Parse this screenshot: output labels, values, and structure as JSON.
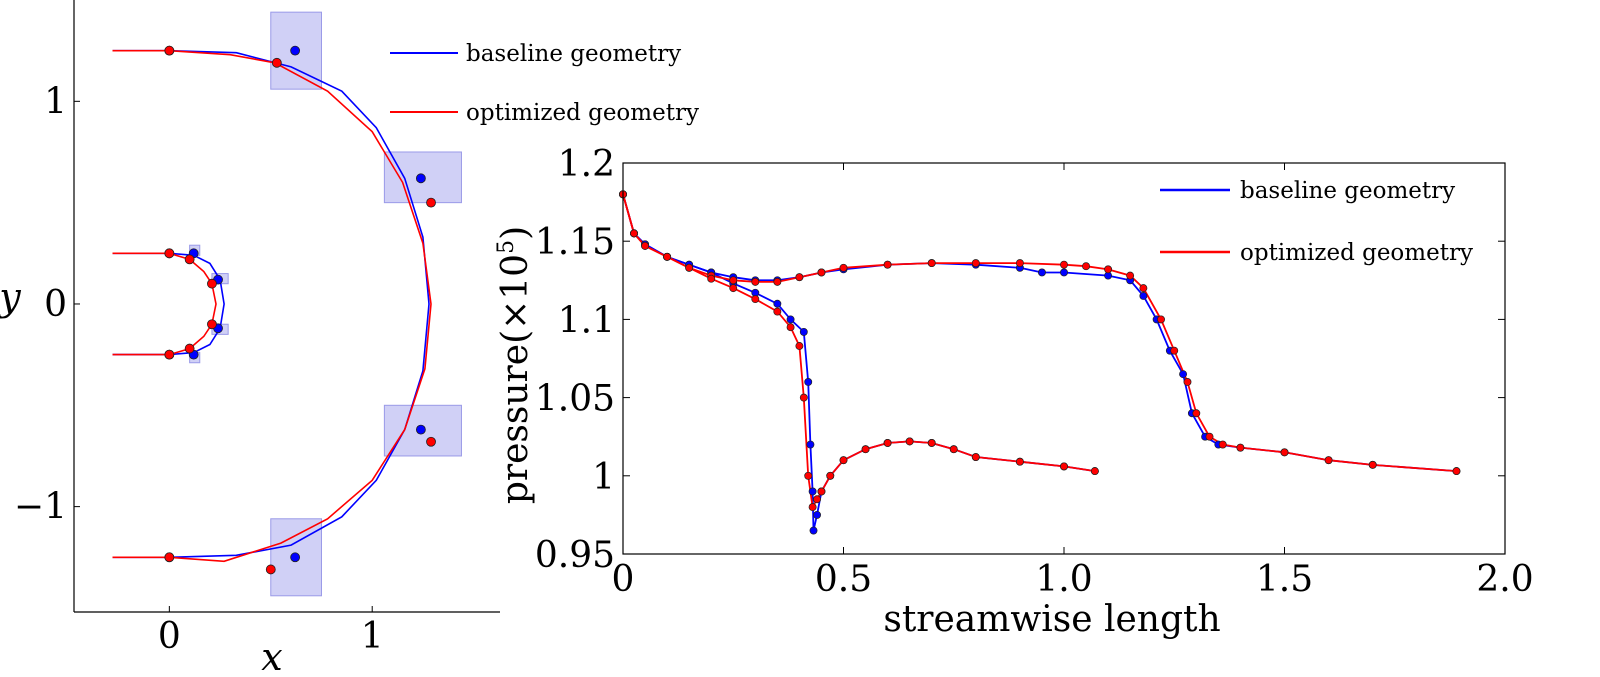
{
  "chart_data": [
    {
      "type": "line",
      "xlabel": "x",
      "ylabel": "y",
      "xlim": [
        -0.47,
        1.63
      ],
      "ylim": [
        -1.52,
        1.5
      ],
      "xticks": [
        0,
        1
      ],
      "yticks": [
        -1,
        0,
        1
      ],
      "xtick_labels": [
        "0",
        "1"
      ],
      "ytick_labels": [
        "−1",
        "0",
        "1"
      ],
      "grid": false,
      "legend_placement": "top-right",
      "colors": {
        "baseline": "#0000ff",
        "optimized": "#ff0000",
        "box_fill": "#c8c8f5"
      },
      "series": [
        {
          "name": "baseline geometry",
          "curves": [
            [
              [
                -0.28,
                1.25
              ],
              [
                0,
                1.25
              ],
              [
                0.33,
                1.24
              ],
              [
                0.6,
                1.17
              ],
              [
                0.85,
                1.05
              ],
              [
                1.02,
                0.87
              ],
              [
                1.16,
                0.62
              ],
              [
                1.25,
                0.33
              ],
              [
                1.28,
                0
              ],
              [
                1.25,
                -0.33
              ],
              [
                1.16,
                -0.62
              ],
              [
                1.02,
                -0.87
              ],
              [
                0.85,
                -1.05
              ],
              [
                0.6,
                -1.19
              ],
              [
                0.33,
                -1.24
              ],
              [
                0,
                -1.25
              ],
              [
                -0.28,
                -1.25
              ]
            ],
            [
              [
                -0.28,
                0.25
              ],
              [
                0,
                0.25
              ],
              [
                0.12,
                0.24
              ],
              [
                0.2,
                0.2
              ],
              [
                0.25,
                0.12
              ],
              [
                0.27,
                0
              ],
              [
                0.25,
                -0.12
              ],
              [
                0.2,
                -0.2
              ],
              [
                0.12,
                -0.24
              ],
              [
                0,
                -0.25
              ],
              [
                -0.28,
                -0.25
              ]
            ]
          ],
          "markers": [
            [
              0,
              1.25
            ],
            [
              0.62,
              1.25
            ],
            [
              1.24,
              0.62
            ],
            [
              1.24,
              -0.62
            ],
            [
              0.62,
              -1.25
            ],
            [
              0,
              -1.25
            ],
            [
              0,
              0.25
            ],
            [
              0.12,
              0.25
            ],
            [
              0.24,
              0.12
            ],
            [
              0.24,
              -0.12
            ],
            [
              0.12,
              -0.25
            ],
            [
              0,
              -0.25
            ]
          ]
        },
        {
          "name": "optimized geometry",
          "curves": [
            [
              [
                -0.28,
                1.25
              ],
              [
                0,
                1.25
              ],
              [
                0.3,
                1.23
              ],
              [
                0.52,
                1.19
              ],
              [
                0.78,
                1.05
              ],
              [
                1.0,
                0.85
              ],
              [
                1.15,
                0.6
              ],
              [
                1.25,
                0.3
              ],
              [
                1.29,
                0
              ],
              [
                1.26,
                -0.32
              ],
              [
                1.16,
                -0.62
              ],
              [
                1.0,
                -0.87
              ],
              [
                0.78,
                -1.06
              ],
              [
                0.55,
                -1.18
              ],
              [
                0.27,
                -1.27
              ],
              [
                0,
                -1.25
              ],
              [
                -0.28,
                -1.25
              ]
            ],
            [
              [
                -0.28,
                0.25
              ],
              [
                0,
                0.25
              ],
              [
                0.1,
                0.22
              ],
              [
                0.17,
                0.16
              ],
              [
                0.21,
                0.1
              ],
              [
                0.23,
                0
              ],
              [
                0.21,
                -0.1
              ],
              [
                0.17,
                -0.16
              ],
              [
                0.1,
                -0.22
              ],
              [
                0,
                -0.25
              ],
              [
                -0.28,
                -0.25
              ]
            ]
          ],
          "markers": [
            [
              0,
              1.25
            ],
            [
              0.53,
              1.19
            ],
            [
              1.29,
              0.5
            ],
            [
              1.29,
              -0.68
            ],
            [
              0.5,
              -1.31
            ],
            [
              0,
              -1.25
            ],
            [
              0,
              0.25
            ],
            [
              0.1,
              0.22
            ],
            [
              0.21,
              0.1
            ],
            [
              0.21,
              -0.1
            ],
            [
              0.1,
              -0.22
            ],
            [
              0,
              -0.25
            ]
          ]
        }
      ],
      "design_boxes": [
        {
          "x": [
            0.5,
            0.75
          ],
          "y": [
            1.06,
            1.44
          ]
        },
        {
          "x": [
            1.06,
            1.44
          ],
          "y": [
            0.5,
            0.75
          ]
        },
        {
          "x": [
            1.06,
            1.44
          ],
          "y": [
            -0.75,
            -0.5
          ]
        },
        {
          "x": [
            0.5,
            0.75
          ],
          "y": [
            -1.44,
            -1.06
          ]
        },
        {
          "x": [
            0.1,
            0.15
          ],
          "y": [
            0.24,
            0.29
          ]
        },
        {
          "x": [
            0.21,
            0.29
          ],
          "y": [
            0.1,
            0.15
          ]
        },
        {
          "x": [
            0.21,
            0.29
          ],
          "y": [
            -0.15,
            -0.1
          ]
        },
        {
          "x": [
            0.1,
            0.15
          ],
          "y": [
            -0.29,
            -0.24
          ]
        }
      ]
    },
    {
      "type": "line",
      "xlabel": "streamwise length",
      "ylabel": "pressure(×10",
      "ylabel_sup": "5",
      "ylabel_close": ")",
      "xlim": [
        0,
        2.0
      ],
      "ylim": [
        0.95,
        1.2
      ],
      "xticks": [
        0,
        0.5,
        1.0,
        1.5,
        2.0
      ],
      "yticks": [
        0.95,
        1,
        1.05,
        1.1,
        1.15,
        1.2
      ],
      "xtick_labels": [
        "0",
        "0.5",
        "1.0",
        "1.5",
        "2.0"
      ],
      "ytick_labels": [
        "0.95",
        "1",
        "1.05",
        "1.1",
        "1.15",
        "1.2"
      ],
      "grid": false,
      "legend_placement": "top-right",
      "colors": {
        "baseline": "#0000ff",
        "optimized": "#ff0000"
      },
      "series": [
        {
          "name": "baseline geometry",
          "branches": [
            [
              [
                0,
                1.18
              ],
              [
                0.025,
                1.155
              ],
              [
                0.05,
                1.148
              ],
              [
                0.1,
                1.14
              ],
              [
                0.15,
                1.135
              ],
              [
                0.2,
                1.13
              ],
              [
                0.25,
                1.127
              ],
              [
                0.3,
                1.125
              ],
              [
                0.35,
                1.125
              ],
              [
                0.4,
                1.127
              ],
              [
                0.45,
                1.13
              ],
              [
                0.5,
                1.132
              ],
              [
                0.6,
                1.135
              ],
              [
                0.7,
                1.136
              ],
              [
                0.8,
                1.135
              ],
              [
                0.9,
                1.133
              ],
              [
                0.95,
                1.13
              ],
              [
                1.0,
                1.13
              ],
              [
                1.1,
                1.128
              ],
              [
                1.15,
                1.125
              ],
              [
                1.18,
                1.115
              ],
              [
                1.21,
                1.1
              ],
              [
                1.24,
                1.08
              ],
              [
                1.27,
                1.065
              ],
              [
                1.29,
                1.04
              ],
              [
                1.32,
                1.025
              ],
              [
                1.35,
                1.02
              ],
              [
                1.4,
                1.018
              ],
              [
                1.5,
                1.015
              ],
              [
                1.6,
                1.01
              ],
              [
                1.7,
                1.007
              ],
              [
                1.89,
                1.003
              ]
            ],
            [
              [
                0,
                1.18
              ],
              [
                0.025,
                1.155
              ],
              [
                0.05,
                1.148
              ],
              [
                0.1,
                1.14
              ],
              [
                0.15,
                1.135
              ],
              [
                0.2,
                1.13
              ],
              [
                0.25,
                1.123
              ],
              [
                0.3,
                1.117
              ],
              [
                0.35,
                1.11
              ],
              [
                0.38,
                1.1
              ],
              [
                0.41,
                1.092
              ],
              [
                0.42,
                1.06
              ],
              [
                0.425,
                1.02
              ],
              [
                0.43,
                0.99
              ],
              [
                0.432,
                0.965
              ],
              [
                0.44,
                0.975
              ],
              [
                0.45,
                0.99
              ],
              [
                0.47,
                1.0
              ],
              [
                0.5,
                1.01
              ],
              [
                0.55,
                1.017
              ],
              [
                0.6,
                1.021
              ],
              [
                0.65,
                1.022
              ],
              [
                0.7,
                1.021
              ],
              [
                0.75,
                1.017
              ],
              [
                0.8,
                1.012
              ],
              [
                0.9,
                1.009
              ],
              [
                1.0,
                1.006
              ],
              [
                1.07,
                1.003
              ]
            ]
          ]
        },
        {
          "name": "optimized geometry",
          "branches": [
            [
              [
                0,
                1.18
              ],
              [
                0.025,
                1.155
              ],
              [
                0.05,
                1.147
              ],
              [
                0.1,
                1.14
              ],
              [
                0.15,
                1.133
              ],
              [
                0.2,
                1.128
              ],
              [
                0.25,
                1.125
              ],
              [
                0.3,
                1.124
              ],
              [
                0.35,
                1.124
              ],
              [
                0.4,
                1.127
              ],
              [
                0.45,
                1.13
              ],
              [
                0.5,
                1.133
              ],
              [
                0.6,
                1.135
              ],
              [
                0.7,
                1.136
              ],
              [
                0.8,
                1.136
              ],
              [
                0.9,
                1.136
              ],
              [
                1.0,
                1.135
              ],
              [
                1.05,
                1.134
              ],
              [
                1.1,
                1.132
              ],
              [
                1.15,
                1.128
              ],
              [
                1.18,
                1.12
              ],
              [
                1.22,
                1.1
              ],
              [
                1.25,
                1.08
              ],
              [
                1.28,
                1.06
              ],
              [
                1.3,
                1.04
              ],
              [
                1.33,
                1.025
              ],
              [
                1.36,
                1.02
              ],
              [
                1.4,
                1.018
              ],
              [
                1.5,
                1.015
              ],
              [
                1.6,
                1.01
              ],
              [
                1.7,
                1.007
              ],
              [
                1.89,
                1.003
              ]
            ],
            [
              [
                0,
                1.18
              ],
              [
                0.025,
                1.155
              ],
              [
                0.05,
                1.147
              ],
              [
                0.1,
                1.14
              ],
              [
                0.15,
                1.133
              ],
              [
                0.2,
                1.126
              ],
              [
                0.25,
                1.12
              ],
              [
                0.3,
                1.113
              ],
              [
                0.35,
                1.105
              ],
              [
                0.38,
                1.095
              ],
              [
                0.4,
                1.083
              ],
              [
                0.41,
                1.05
              ],
              [
                0.42,
                1.0
              ],
              [
                0.43,
                0.98
              ],
              [
                0.44,
                0.985
              ],
              [
                0.45,
                0.99
              ],
              [
                0.47,
                1.0
              ],
              [
                0.5,
                1.01
              ],
              [
                0.55,
                1.017
              ],
              [
                0.6,
                1.021
              ],
              [
                0.65,
                1.022
              ],
              [
                0.7,
                1.021
              ],
              [
                0.75,
                1.017
              ],
              [
                0.8,
                1.012
              ],
              [
                0.9,
                1.009
              ],
              [
                1.0,
                1.006
              ],
              [
                1.07,
                1.003
              ]
            ]
          ]
        }
      ]
    }
  ]
}
